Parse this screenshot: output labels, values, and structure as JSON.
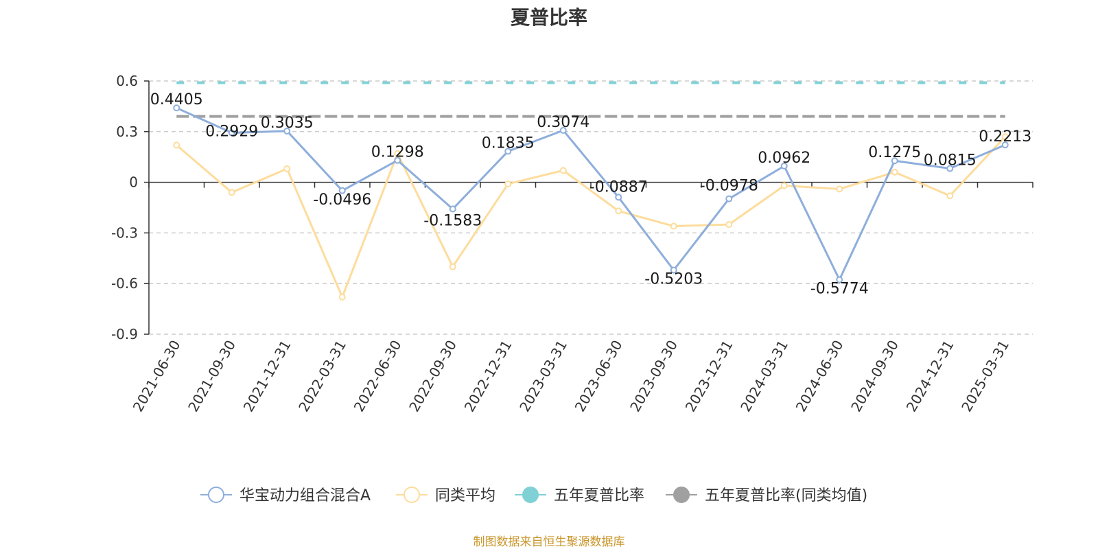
{
  "chart_data": {
    "type": "line",
    "title": "夏普比率",
    "x": [
      "2021-06-30",
      "2021-09-30",
      "2021-12-31",
      "2022-03-31",
      "2022-06-30",
      "2022-09-30",
      "2022-12-31",
      "2023-03-31",
      "2023-06-30",
      "2023-09-30",
      "2023-12-31",
      "2024-03-31",
      "2024-06-30",
      "2024-09-30",
      "2024-12-31",
      "2025-03-31"
    ],
    "y_ticks": [
      "0.6",
      "0.3",
      "0",
      "-0.3",
      "-0.6",
      "-0.9"
    ],
    "ylim": [
      -0.9,
      0.6
    ],
    "grid": "horizontal dashed",
    "legend_position": "bottom",
    "series": [
      {
        "name": "华宝动力组合混合A",
        "color": "#8eaedb",
        "values": [
          0.4405,
          0.2929,
          0.3035,
          -0.0496,
          0.1298,
          -0.1583,
          0.1835,
          0.3074,
          -0.0887,
          -0.5203,
          -0.0978,
          0.0962,
          -0.5774,
          0.1275,
          0.0815,
          0.2213
        ],
        "labels": [
          "0.4405",
          "0.2929",
          "0.3035",
          "-0.0496",
          "0.1298",
          "-0.1583",
          "0.1835",
          "0.3074",
          "-0.0887",
          "-0.5203",
          "-0.0978",
          "0.0962",
          "-0.5774",
          "0.1275",
          "0.0815",
          "0.2213"
        ]
      },
      {
        "name": "同类平均",
        "color": "#fddc9c",
        "values": [
          0.22,
          -0.06,
          0.08,
          -0.68,
          0.17,
          -0.5,
          -0.01,
          0.07,
          -0.17,
          -0.26,
          -0.25,
          -0.02,
          -0.04,
          0.06,
          -0.08,
          0.27
        ]
      },
      {
        "name": "五年夏普比率",
        "color": "#7fd1d6",
        "value": 0.59
      },
      {
        "name": "五年夏普比率(同类均值)",
        "color": "#a0a0a0",
        "value": 0.39
      }
    ]
  },
  "source_note": "制图数据来自恒生聚源数据库"
}
